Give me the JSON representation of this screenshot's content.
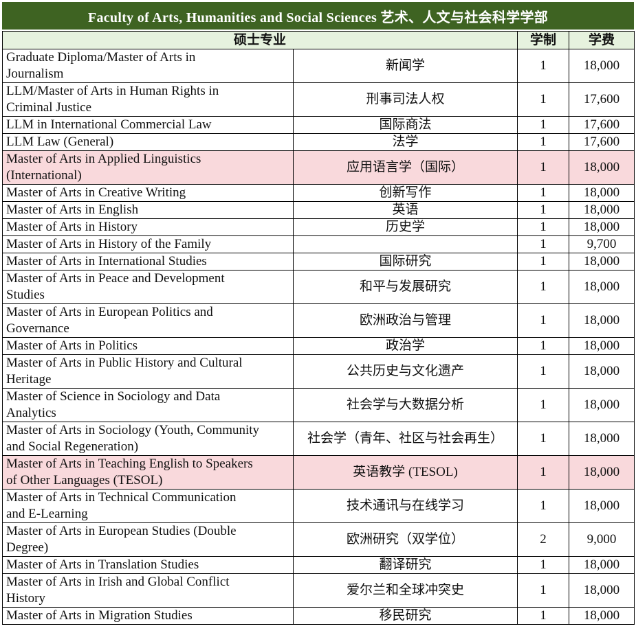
{
  "title": "Faculty of Arts, Humanities and Social Sciences 艺术、人文与社会科学学部",
  "columns": {
    "program": "硕士专业",
    "duration": "学制",
    "fee": "学费"
  },
  "colors": {
    "title_bar_green": "#3e6322",
    "header_light_green": "#e6f2de",
    "highlight_pink": "#f9d9dc",
    "title_text": "#ffffff",
    "body_text": "#111111",
    "grid_border": "#000000"
  },
  "rows": [
    {
      "en": "Graduate Diploma/Master of Arts in\nJournalism",
      "zh": "新闻学",
      "duration": "1",
      "fee": "18,000",
      "highlighted": false
    },
    {
      "en": "LLM/Master of Arts in Human Rights in\nCriminal Justice",
      "zh": "刑事司法人权",
      "duration": "1",
      "fee": "17,600",
      "highlighted": false
    },
    {
      "en": "LLM in International Commercial Law",
      "zh": "国际商法",
      "duration": "1",
      "fee": "17,600",
      "highlighted": false
    },
    {
      "en": "LLM Law (General)",
      "zh": "法学",
      "duration": "1",
      "fee": "17,600",
      "highlighted": false
    },
    {
      "en": "Master of Arts in Applied Linguistics\n(International)",
      "zh": "应用语言学（国际）",
      "duration": "1",
      "fee": "18,000",
      "highlighted": true
    },
    {
      "en": "Master of Arts in Creative Writing",
      "zh": "创新写作",
      "duration": "1",
      "fee": "18,000",
      "highlighted": false
    },
    {
      "en": "Master of Arts in English",
      "zh": "英语",
      "duration": "1",
      "fee": "18,000",
      "highlighted": false
    },
    {
      "en": "Master of Arts in History",
      "zh": "历史学",
      "duration": "1",
      "fee": "18,000",
      "highlighted": false
    },
    {
      "en": "Master of Arts in History of the Family",
      "zh": "",
      "duration": "1",
      "fee": "9,700",
      "highlighted": false
    },
    {
      "en": "Master of Arts in International Studies",
      "zh": "国际研究",
      "duration": "1",
      "fee": "18,000",
      "highlighted": false
    },
    {
      "en": "Master of Arts in Peace and Development\nStudies",
      "zh": "和平与发展研究",
      "duration": "1",
      "fee": "18,000",
      "highlighted": false
    },
    {
      "en": "Master of Arts in European Politics and\nGovernance",
      "zh": "欧洲政治与管理",
      "duration": "1",
      "fee": "18,000",
      "highlighted": false
    },
    {
      "en": "Master of Arts in Politics",
      "zh": "政治学",
      "duration": "1",
      "fee": "18,000",
      "highlighted": false
    },
    {
      "en": "Master of Arts in Public History and Cultural\nHeritage",
      "zh": "公共历史与文化遗产",
      "duration": "1",
      "fee": "18,000",
      "highlighted": false
    },
    {
      "en": "Master of Science in Sociology and Data\nAnalytics",
      "zh": "社会学与大数据分析",
      "duration": "1",
      "fee": "18,000",
      "highlighted": false
    },
    {
      "en": "Master of Arts in Sociology (Youth, Community\nand Social Regeneration)",
      "zh": "社会学（青年、社区与社会再生）",
      "duration": "1",
      "fee": "18,000",
      "highlighted": false
    },
    {
      "en": "Master of Arts in Teaching English to Speakers\nof Other Languages (TESOL)",
      "zh": "英语教学 (TESOL)",
      "duration": "1",
      "fee": "18,000",
      "highlighted": true
    },
    {
      "en": "Master of Arts in Technical Communication\nand E-Learning",
      "zh": "技术通讯与在线学习",
      "duration": "1",
      "fee": "18,000",
      "highlighted": false
    },
    {
      "en": "Master of Arts in European Studies (Double\nDegree)",
      "zh": "欧洲研究（双学位）",
      "duration": "2",
      "fee": "9,000",
      "highlighted": false
    },
    {
      "en": "Master of Arts in Translation Studies",
      "zh": "翻译研究",
      "duration": "1",
      "fee": "18,000",
      "highlighted": false
    },
    {
      "en": "Master of Arts in Irish and Global Conflict\nHistory",
      "zh": "爱尔兰和全球冲突史",
      "duration": "1",
      "fee": "18,000",
      "highlighted": false
    },
    {
      "en": "Master of Arts in Migration Studies",
      "zh": "移民研究",
      "duration": "1",
      "fee": "18,000",
      "highlighted": false
    }
  ]
}
